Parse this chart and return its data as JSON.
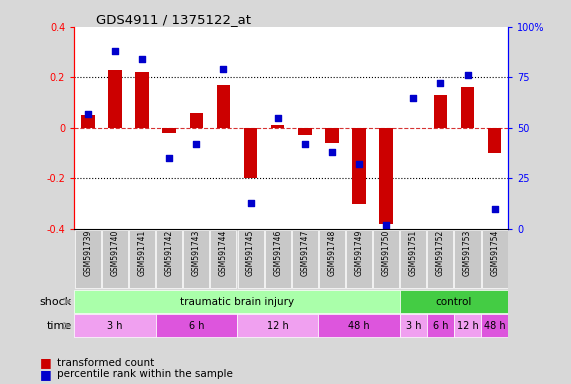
{
  "title": "GDS4911 / 1375122_at",
  "samples": [
    "GSM591739",
    "GSM591740",
    "GSM591741",
    "GSM591742",
    "GSM591743",
    "GSM591744",
    "GSM591745",
    "GSM591746",
    "GSM591747",
    "GSM591748",
    "GSM591749",
    "GSM591750",
    "GSM591751",
    "GSM591752",
    "GSM591753",
    "GSM591754"
  ],
  "transformed_count": [
    0.05,
    0.23,
    0.22,
    -0.02,
    0.06,
    0.17,
    -0.2,
    0.01,
    -0.03,
    -0.06,
    -0.3,
    -0.38,
    0.0,
    0.13,
    0.16,
    -0.1
  ],
  "percentile_rank": [
    57,
    88,
    84,
    35,
    42,
    79,
    13,
    55,
    42,
    38,
    32,
    2,
    65,
    72,
    76,
    10
  ],
  "ylim_left": [
    -0.4,
    0.4
  ],
  "ylim_right": [
    0,
    100
  ],
  "bar_color": "#cc0000",
  "dot_color": "#0000cc",
  "bg_color": "#d8d8d8",
  "plot_bg": "#ffffff",
  "tick_label_bg": "#c8c8c8",
  "shock_tbi_color": "#aaffaa",
  "shock_ctrl_color": "#44cc44",
  "time_colors": [
    "#f0a0f0",
    "#dd55dd",
    "#f0a0f0",
    "#dd55dd",
    "#f0a0f0",
    "#dd55dd",
    "#f0a0f0",
    "#dd55dd"
  ],
  "time_groups": [
    {
      "label": "3 h",
      "start": 0,
      "end": 3
    },
    {
      "label": "6 h",
      "start": 3,
      "end": 6
    },
    {
      "label": "12 h",
      "start": 6,
      "end": 9
    },
    {
      "label": "48 h",
      "start": 9,
      "end": 12
    },
    {
      "label": "3 h",
      "start": 12,
      "end": 13
    },
    {
      "label": "6 h",
      "start": 13,
      "end": 14
    },
    {
      "label": "12 h",
      "start": 14,
      "end": 15
    },
    {
      "label": "48 h",
      "start": 15,
      "end": 16
    }
  ],
  "legend_items": [
    {
      "label": "transformed count",
      "color": "#cc0000"
    },
    {
      "label": "percentile rank within the sample",
      "color": "#0000cc"
    }
  ],
  "shock_row_label": "shock",
  "time_row_label": "time",
  "right_tick_labels": [
    "0",
    "25",
    "50",
    "75",
    "100%"
  ],
  "right_ticks": [
    0,
    25,
    50,
    75,
    100
  ],
  "left_ticks": [
    -0.4,
    -0.2,
    0.0,
    0.2,
    0.4
  ],
  "left_tick_labels": [
    "-0.4",
    "-0.2",
    "0",
    "0.2",
    "0.4"
  ]
}
